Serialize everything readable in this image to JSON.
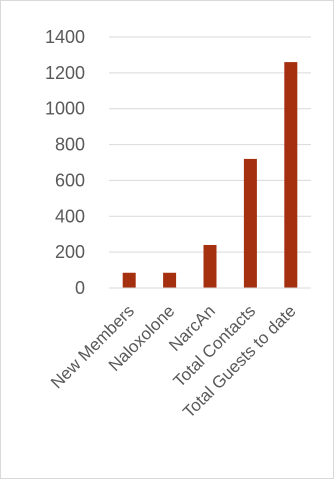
{
  "chart_data": {
    "type": "bar",
    "categories": [
      "New Members",
      "Naloxolone",
      "NarcAn",
      "Total Contacts",
      "Total Guests to date"
    ],
    "values": [
      85,
      85,
      240,
      720,
      1260
    ],
    "ylim": [
      0,
      1400
    ],
    "yticks": [
      0,
      200,
      400,
      600,
      800,
      1000,
      1200,
      1400
    ],
    "grid": true,
    "legend": "none",
    "bar_color": "#A5300F",
    "grid_color": "#D9D9D9",
    "label_color": "#595959"
  }
}
